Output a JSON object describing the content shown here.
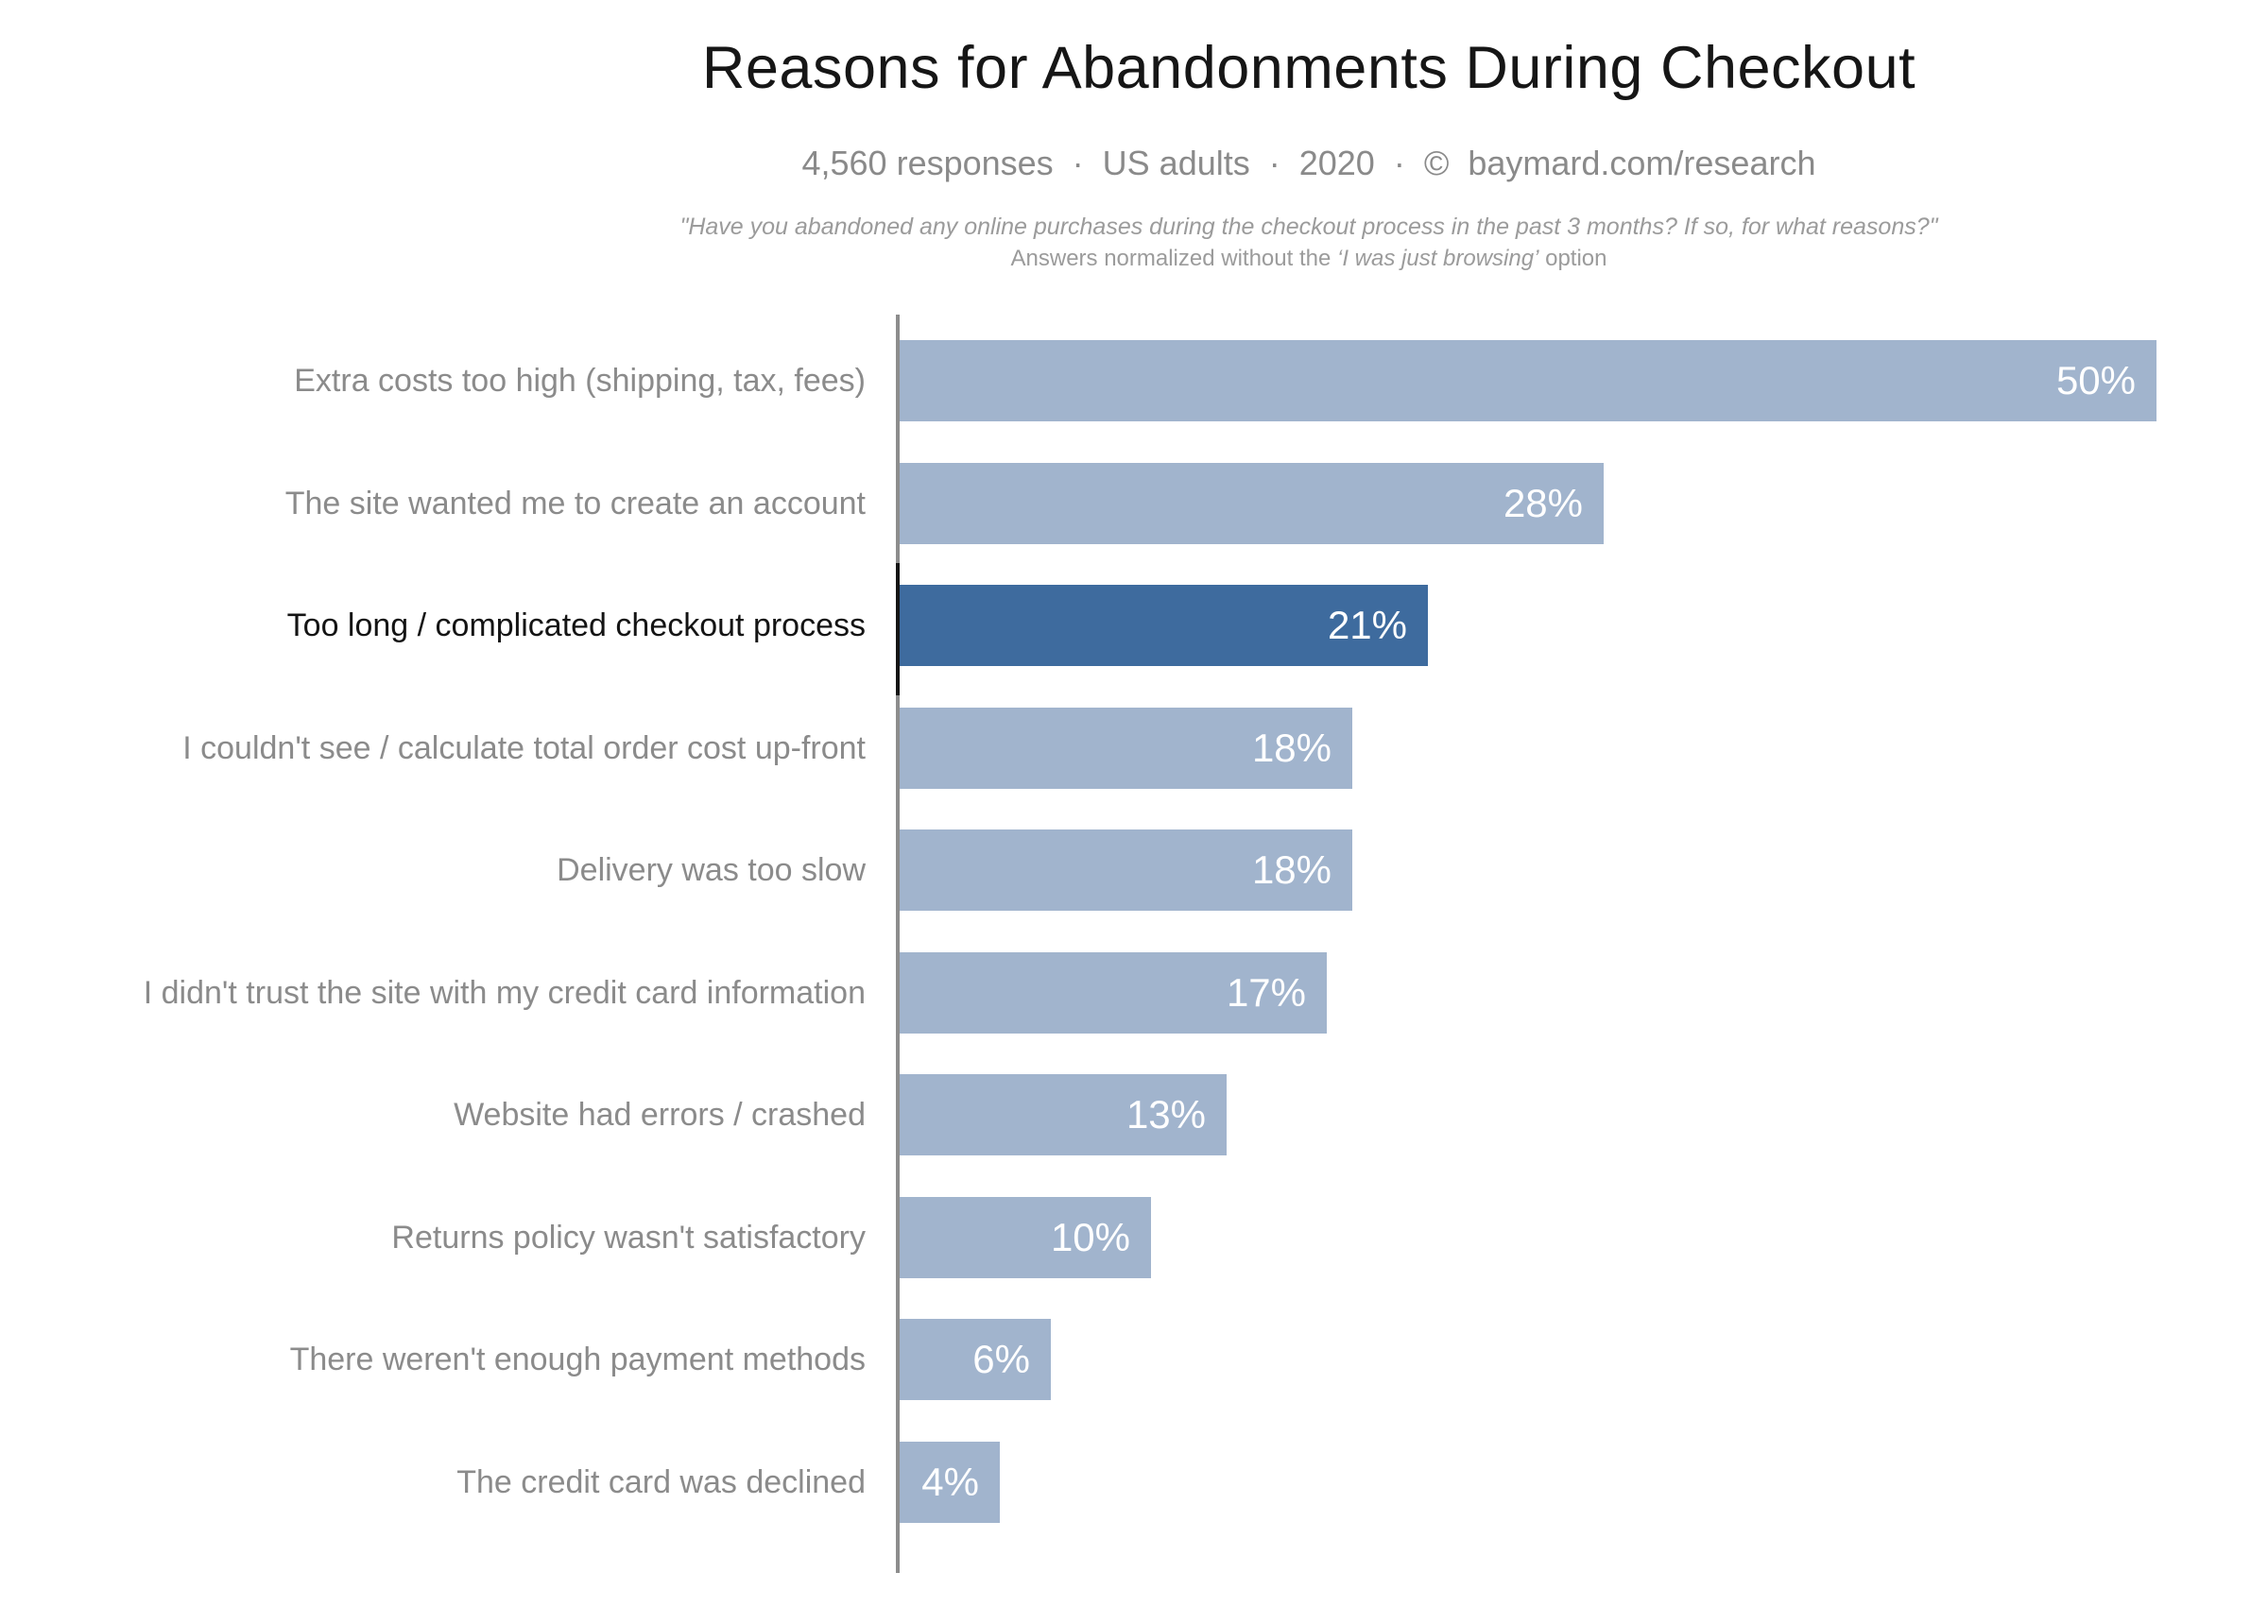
{
  "header": {
    "title": "Reasons for Abandonments During Checkout",
    "subtitle": "4,560 responses  ·  US adults  ·  2020  ·  ©  baymard.com/research",
    "quote_line1": "\"Have you abandoned any online purchases during the checkout process in the past 3 months? If so, for what reasons?\"",
    "quote_line2_prefix": "Answers normalized without the ",
    "quote_line2_italic": "‘I was just browsing’",
    "quote_line2_suffix": " option"
  },
  "chart_data": {
    "type": "bar",
    "orientation": "horizontal",
    "title": "Reasons for Abandonments During Checkout",
    "subtitle": "4,560 responses · US adults · 2020 · © baymard.com/research",
    "annotation_line1": "\"Have you abandoned any online purchases during the checkout process in the past 3 months? If so, for what reasons?\"",
    "annotation_line2": "Answers normalized without the ‘I was just browsing’ option",
    "xlabel": "",
    "ylabel": "",
    "xlim": [
      0,
      50
    ],
    "grid": false,
    "legend": false,
    "value_suffix": "%",
    "categories": [
      "Extra costs too high (shipping, tax, fees)",
      "The site wanted me to create an account",
      "Too long / complicated checkout process",
      "I couldn't see / calculate total order cost up-front",
      "Delivery was too slow",
      "I didn't trust the site with my credit card information",
      "Website had errors / crashed",
      "Returns policy wasn't satisfactory",
      "There weren't enough payment methods",
      "The credit card was declined"
    ],
    "values": [
      50,
      28,
      21,
      18,
      18,
      17,
      13,
      10,
      6,
      4
    ],
    "value_labels": [
      "50%",
      "28%",
      "21%",
      "18%",
      "18%",
      "17%",
      "13%",
      "10%",
      "6%",
      "4%"
    ],
    "highlight_index": 2,
    "colors": {
      "bar": "#a1b4cd",
      "bar_highlighted": "#3e6b9e",
      "category_label": "#8b8b8b",
      "category_label_highlighted": "#141414",
      "value_label": "#ffffff",
      "axis": "#8d8d8d",
      "axis_highlighted_segment": "#151515"
    }
  }
}
